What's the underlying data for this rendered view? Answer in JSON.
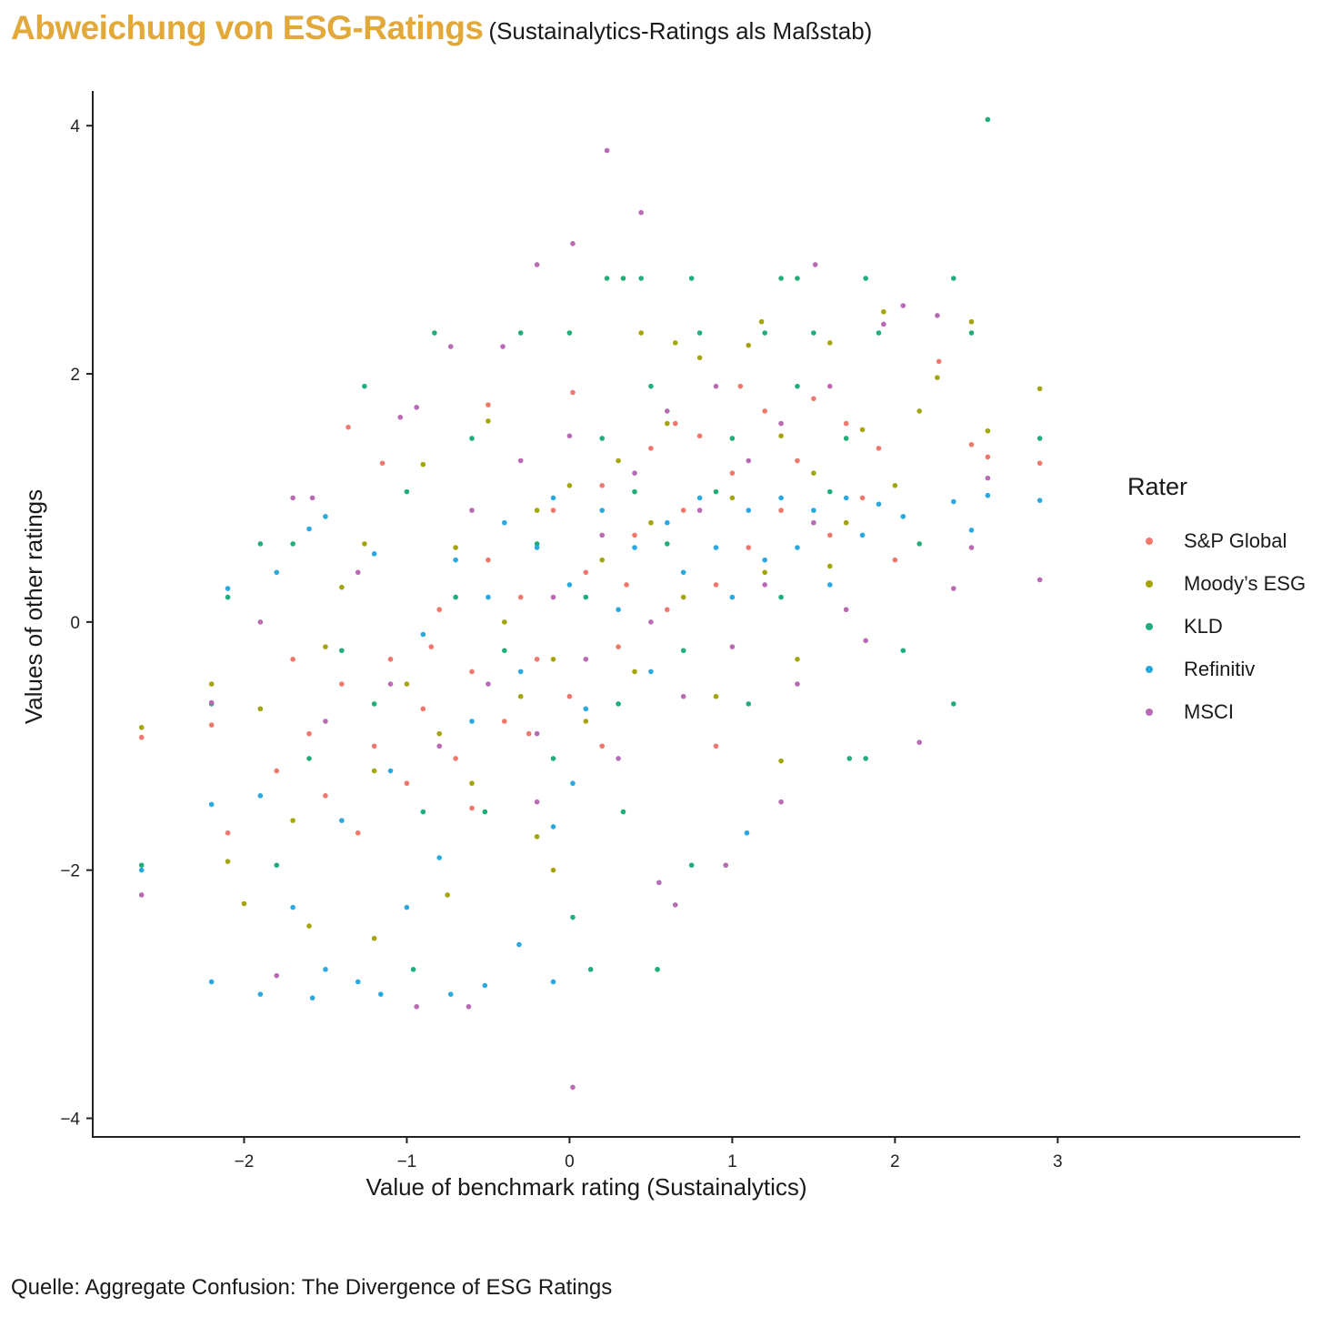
{
  "title": "Abweichung von ESG-Ratings",
  "subtitle": "(Sustainalytics-Ratings als Maßstab)",
  "caption": "Quelle: Aggregate Confusion: The Divergence of ESG Ratings",
  "chart_data": {
    "type": "scatter",
    "xlabel": "Value of benchmark rating (Sustainalytics)",
    "ylabel": "Values of other ratings",
    "xlim": [
      -2.93,
      4.49
    ],
    "ylim": [
      -4.15,
      4.28
    ],
    "xticks": [
      {
        "v": -2,
        "label": "−2"
      },
      {
        "v": -1,
        "label": "−1"
      },
      {
        "v": 0,
        "label": "0"
      },
      {
        "v": 1,
        "label": "1"
      },
      {
        "v": 2,
        "label": "2"
      },
      {
        "v": 3,
        "label": "3"
      }
    ],
    "yticks": [
      {
        "v": 4,
        "label": "4"
      },
      {
        "v": 2,
        "label": "2"
      },
      {
        "v": 0,
        "label": "0"
      },
      {
        "v": -2,
        "label": "−2"
      },
      {
        "v": -4,
        "label": "−4"
      }
    ],
    "grid": false,
    "legend": {
      "title": "Rater",
      "placement": "right"
    },
    "series": [
      {
        "name": "S&P Global",
        "color": "#F0776C",
        "points": [
          [
            -2.63,
            -0.93
          ],
          [
            -2.2,
            -0.83
          ],
          [
            -2.1,
            -1.7
          ],
          [
            -1.36,
            1.57
          ],
          [
            2.27,
            2.1
          ],
          [
            2.47,
            1.43
          ],
          [
            2.57,
            1.33
          ],
          [
            2.89,
            1.28
          ],
          [
            -0.5,
            1.75
          ],
          [
            0.02,
            1.85
          ],
          [
            -1.8,
            -1.2
          ],
          [
            -1.6,
            -0.9
          ],
          [
            -1.5,
            -1.4
          ],
          [
            -1.4,
            -0.5
          ],
          [
            -1.2,
            -1.0
          ],
          [
            -1.1,
            -0.3
          ],
          [
            -1.0,
            -1.3
          ],
          [
            -0.9,
            -0.7
          ],
          [
            -0.8,
            0.1
          ],
          [
            -0.7,
            -1.1
          ],
          [
            -0.6,
            -0.4
          ],
          [
            -0.5,
            0.5
          ],
          [
            -0.4,
            -0.8
          ],
          [
            -0.3,
            0.2
          ],
          [
            -0.2,
            -0.3
          ],
          [
            -0.1,
            0.9
          ],
          [
            0.0,
            -0.6
          ],
          [
            0.1,
            0.4
          ],
          [
            0.2,
            1.1
          ],
          [
            0.3,
            -0.2
          ],
          [
            0.4,
            0.7
          ],
          [
            0.5,
            1.4
          ],
          [
            0.6,
            0.1
          ],
          [
            0.7,
            0.9
          ],
          [
            0.8,
            1.5
          ],
          [
            0.9,
            0.3
          ],
          [
            1.0,
            1.2
          ],
          [
            1.1,
            0.6
          ],
          [
            1.2,
            1.7
          ],
          [
            1.3,
            0.9
          ],
          [
            1.4,
            1.3
          ],
          [
            1.5,
            1.8
          ],
          [
            1.6,
            0.7
          ],
          [
            1.7,
            1.6
          ],
          [
            1.8,
            1.0
          ],
          [
            1.9,
            1.4
          ],
          [
            2.0,
            0.5
          ],
          [
            -1.3,
            -1.7
          ],
          [
            -0.6,
            -1.5
          ],
          [
            0.2,
            -1.0
          ],
          [
            0.9,
            -1.0
          ],
          [
            -1.7,
            -0.3
          ],
          [
            -1.15,
            1.28
          ],
          [
            0.65,
            1.6
          ],
          [
            1.05,
            1.9
          ],
          [
            -0.85,
            -0.2
          ],
          [
            -0.25,
            -0.9
          ],
          [
            0.35,
            0.3
          ]
        ]
      },
      {
        "name": "Moody’s ESG",
        "color": "#A4A50A",
        "points": [
          [
            -2.63,
            -0.85
          ],
          [
            -2.2,
            -0.5
          ],
          [
            -2.1,
            -1.93
          ],
          [
            -2.0,
            -2.27
          ],
          [
            1.93,
            2.5
          ],
          [
            2.47,
            2.42
          ],
          [
            2.89,
            1.88
          ],
          [
            2.57,
            1.54
          ],
          [
            1.18,
            2.42
          ],
          [
            -0.1,
            -2.0
          ],
          [
            1.3,
            -1.12
          ],
          [
            -1.9,
            -0.7
          ],
          [
            -1.7,
            -1.6
          ],
          [
            -1.5,
            -0.2
          ],
          [
            -1.4,
            0.28
          ],
          [
            -1.2,
            -1.2
          ],
          [
            -1.0,
            -0.5
          ],
          [
            -0.9,
            1.27
          ],
          [
            -0.8,
            -0.9
          ],
          [
            -0.7,
            0.6
          ],
          [
            -0.6,
            -1.3
          ],
          [
            -0.5,
            1.62
          ],
          [
            -0.4,
            0.0
          ],
          [
            -0.3,
            -0.6
          ],
          [
            -0.2,
            0.9
          ],
          [
            -0.1,
            -0.3
          ],
          [
            0.0,
            1.1
          ],
          [
            0.1,
            -0.8
          ],
          [
            0.2,
            0.5
          ],
          [
            0.3,
            1.3
          ],
          [
            0.4,
            -0.4
          ],
          [
            0.5,
            0.8
          ],
          [
            0.6,
            1.6
          ],
          [
            0.7,
            0.2
          ],
          [
            0.8,
            2.13
          ],
          [
            0.9,
            -0.6
          ],
          [
            1.0,
            1.0
          ],
          [
            1.1,
            2.23
          ],
          [
            1.2,
            0.4
          ],
          [
            1.3,
            1.5
          ],
          [
            1.4,
            -0.3
          ],
          [
            1.5,
            1.2
          ],
          [
            1.6,
            2.25
          ],
          [
            1.7,
            0.8
          ],
          [
            1.8,
            1.55
          ],
          [
            2.0,
            1.1
          ],
          [
            2.15,
            1.7
          ],
          [
            2.26,
            1.97
          ],
          [
            -1.6,
            -2.45
          ],
          [
            -1.2,
            -2.55
          ],
          [
            -0.75,
            -2.2
          ],
          [
            -0.2,
            -1.73
          ],
          [
            0.44,
            2.33
          ],
          [
            0.65,
            2.25
          ],
          [
            -1.26,
            0.63
          ],
          [
            1.6,
            0.45
          ]
        ]
      },
      {
        "name": "KLD",
        "color": "#1FAE78",
        "points": [
          [
            2.57,
            4.05
          ],
          [
            -2.63,
            -1.96
          ],
          [
            -2.1,
            0.2
          ],
          [
            -1.26,
            1.9
          ],
          [
            -0.83,
            2.33
          ],
          [
            0.23,
            2.77
          ],
          [
            0.33,
            2.77
          ],
          [
            0.44,
            2.77
          ],
          [
            0.75,
            2.77
          ],
          [
            1.3,
            2.77
          ],
          [
            1.4,
            2.77
          ],
          [
            1.82,
            2.77
          ],
          [
            2.36,
            2.77
          ],
          [
            2.89,
            1.48
          ],
          [
            0.02,
            -2.38
          ],
          [
            0.54,
            -2.8
          ],
          [
            0.13,
            -2.8
          ],
          [
            -0.96,
            -2.8
          ],
          [
            2.36,
            -0.66
          ],
          [
            1.72,
            -1.1
          ],
          [
            1.82,
            -1.1
          ],
          [
            0.75,
            -1.96
          ],
          [
            -2.2,
            -0.66
          ],
          [
            -1.9,
            0.63
          ],
          [
            -1.7,
            0.63
          ],
          [
            -1.6,
            -1.1
          ],
          [
            -1.4,
            -0.23
          ],
          [
            -1.2,
            -0.66
          ],
          [
            -1.0,
            1.05
          ],
          [
            -0.9,
            -1.53
          ],
          [
            -0.7,
            0.2
          ],
          [
            -0.6,
            1.48
          ],
          [
            -0.4,
            -0.23
          ],
          [
            -0.3,
            2.33
          ],
          [
            -0.2,
            0.63
          ],
          [
            -0.1,
            -1.1
          ],
          [
            0.0,
            2.33
          ],
          [
            0.1,
            0.2
          ],
          [
            0.2,
            1.48
          ],
          [
            0.3,
            -0.66
          ],
          [
            0.4,
            1.05
          ],
          [
            0.5,
            1.9
          ],
          [
            0.6,
            0.63
          ],
          [
            0.7,
            -0.23
          ],
          [
            0.8,
            2.33
          ],
          [
            0.9,
            1.05
          ],
          [
            1.0,
            1.48
          ],
          [
            1.1,
            -0.66
          ],
          [
            1.2,
            2.33
          ],
          [
            1.3,
            0.2
          ],
          [
            1.4,
            1.9
          ],
          [
            1.5,
            2.33
          ],
          [
            1.6,
            1.05
          ],
          [
            1.7,
            1.48
          ],
          [
            1.9,
            2.33
          ],
          [
            2.05,
            -0.23
          ],
          [
            2.15,
            0.63
          ],
          [
            2.47,
            2.33
          ],
          [
            -0.52,
            -1.53
          ],
          [
            0.33,
            -1.53
          ],
          [
            -1.8,
            -1.96
          ]
        ]
      },
      {
        "name": "Refinitiv",
        "color": "#2AA8E0",
        "points": [
          [
            -2.63,
            -2.0
          ],
          [
            -2.2,
            -2.9
          ],
          [
            -2.2,
            -1.47
          ],
          [
            -2.1,
            0.27
          ],
          [
            -1.9,
            -3.0
          ],
          [
            -1.58,
            -3.03
          ],
          [
            -1.16,
            -3.0
          ],
          [
            -0.73,
            -3.0
          ],
          [
            -0.52,
            -2.93
          ],
          [
            -0.1,
            -2.9
          ],
          [
            -0.31,
            -2.6
          ],
          [
            2.57,
            1.02
          ],
          [
            2.89,
            0.98
          ],
          [
            1.09,
            -1.7
          ],
          [
            2.47,
            0.74
          ],
          [
            -1.9,
            -1.4
          ],
          [
            -1.8,
            0.4
          ],
          [
            -1.7,
            -2.3
          ],
          [
            -1.6,
            0.75
          ],
          [
            -1.5,
            0.85
          ],
          [
            -1.4,
            -1.6
          ],
          [
            -1.3,
            -2.9
          ],
          [
            -1.2,
            0.55
          ],
          [
            -1.1,
            -1.2
          ],
          [
            -1.0,
            -2.3
          ],
          [
            -0.9,
            -0.1
          ],
          [
            -0.8,
            -1.9
          ],
          [
            -0.7,
            0.5
          ],
          [
            -0.6,
            -0.8
          ],
          [
            -0.5,
            0.2
          ],
          [
            -0.4,
            0.8
          ],
          [
            -0.3,
            -0.4
          ],
          [
            -0.2,
            0.6
          ],
          [
            -0.1,
            1.0
          ],
          [
            0.0,
            0.3
          ],
          [
            0.1,
            -0.7
          ],
          [
            0.2,
            0.9
          ],
          [
            0.3,
            0.1
          ],
          [
            0.4,
            0.6
          ],
          [
            0.5,
            -0.4
          ],
          [
            0.6,
            0.8
          ],
          [
            0.7,
            0.4
          ],
          [
            0.8,
            1.0
          ],
          [
            0.9,
            0.6
          ],
          [
            1.0,
            0.2
          ],
          [
            1.1,
            0.9
          ],
          [
            1.2,
            0.5
          ],
          [
            1.3,
            1.0
          ],
          [
            1.4,
            0.6
          ],
          [
            1.5,
            0.9
          ],
          [
            1.6,
            0.3
          ],
          [
            1.7,
            1.0
          ],
          [
            1.8,
            0.7
          ],
          [
            1.9,
            0.95
          ],
          [
            2.05,
            0.85
          ],
          [
            2.36,
            0.97
          ],
          [
            0.02,
            -1.3
          ],
          [
            -0.1,
            -1.65
          ],
          [
            -1.5,
            -2.8
          ]
        ]
      },
      {
        "name": "MSCI",
        "color": "#B86AB4",
        "points": [
          [
            0.23,
            3.8
          ],
          [
            0.44,
            3.3
          ],
          [
            0.02,
            3.05
          ],
          [
            -0.2,
            2.88
          ],
          [
            1.51,
            2.88
          ],
          [
            -2.63,
            -2.2
          ],
          [
            0.02,
            -3.75
          ],
          [
            -0.94,
            -3.1
          ],
          [
            -0.62,
            -3.1
          ],
          [
            2.89,
            0.34
          ],
          [
            2.15,
            -0.97
          ],
          [
            -0.73,
            2.22
          ],
          [
            -0.41,
            2.22
          ],
          [
            2.05,
            2.55
          ],
          [
            2.26,
            2.47
          ],
          [
            0.65,
            -2.28
          ],
          [
            0.96,
            -1.96
          ],
          [
            -1.9,
            0.0
          ],
          [
            -1.7,
            1.0
          ],
          [
            -1.58,
            1.0
          ],
          [
            -1.8,
            -2.85
          ],
          [
            -1.5,
            -0.8
          ],
          [
            -1.3,
            0.4
          ],
          [
            -1.1,
            -0.5
          ],
          [
            -1.04,
            1.65
          ],
          [
            -0.94,
            1.73
          ],
          [
            -0.8,
            -1.0
          ],
          [
            -0.6,
            0.9
          ],
          [
            -0.5,
            -0.5
          ],
          [
            -0.3,
            1.3
          ],
          [
            -0.2,
            -0.9
          ],
          [
            -0.1,
            0.2
          ],
          [
            0.0,
            1.5
          ],
          [
            0.1,
            -0.3
          ],
          [
            0.2,
            0.7
          ],
          [
            0.3,
            -1.1
          ],
          [
            0.4,
            1.2
          ],
          [
            0.5,
            0.0
          ],
          [
            0.6,
            1.7
          ],
          [
            0.7,
            -0.6
          ],
          [
            0.8,
            0.9
          ],
          [
            0.9,
            1.9
          ],
          [
            1.0,
            -0.2
          ],
          [
            1.1,
            1.3
          ],
          [
            1.2,
            0.3
          ],
          [
            1.3,
            1.6
          ],
          [
            1.4,
            -0.5
          ],
          [
            1.5,
            0.8
          ],
          [
            1.6,
            1.9
          ],
          [
            1.7,
            0.1
          ],
          [
            1.82,
            -0.15
          ],
          [
            1.93,
            2.4
          ],
          [
            2.36,
            0.27
          ],
          [
            2.47,
            0.6
          ],
          [
            2.57,
            1.16
          ],
          [
            -2.2,
            -0.65
          ],
          [
            -0.2,
            -1.45
          ],
          [
            0.55,
            -2.1
          ],
          [
            1.3,
            -1.45
          ]
        ]
      }
    ]
  }
}
